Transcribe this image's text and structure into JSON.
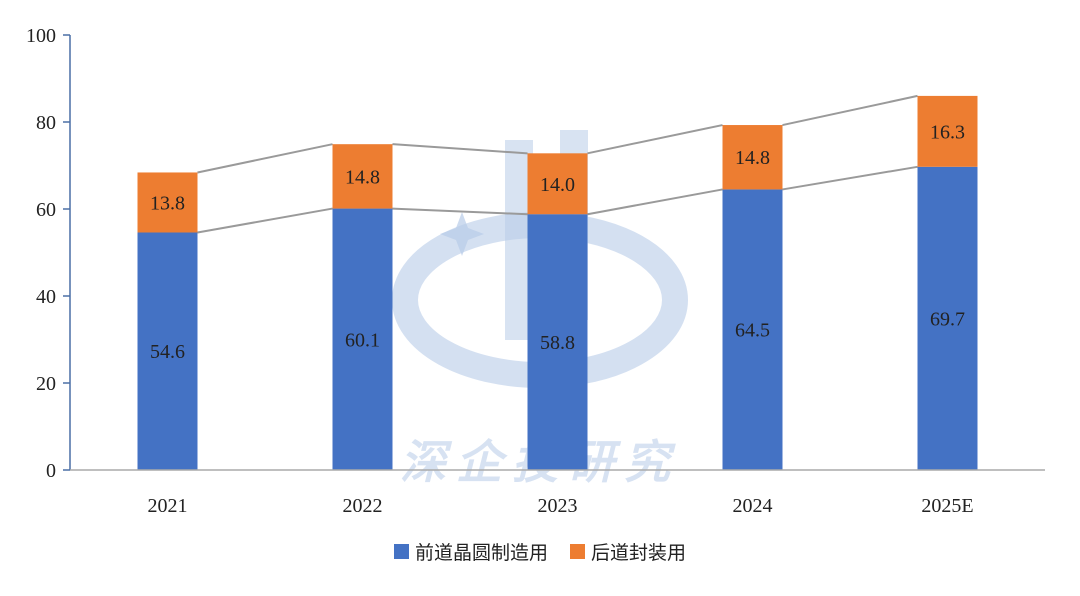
{
  "chart_data": {
    "type": "bar",
    "stacked": true,
    "categories": [
      "2021",
      "2022",
      "2023",
      "2024",
      "2025E"
    ],
    "series": [
      {
        "name": "前道晶圆制造用",
        "values": [
          54.6,
          60.1,
          58.8,
          64.5,
          69.7
        ],
        "color": "#4472C4"
      },
      {
        "name": "后道封装用",
        "values": [
          13.8,
          14.8,
          14.0,
          14.8,
          16.3
        ],
        "color": "#ED7D31"
      }
    ],
    "ylim": [
      0,
      100
    ],
    "yticks": [
      0,
      20,
      40,
      60,
      80,
      100
    ],
    "series_lines": true,
    "grid": false,
    "legend_position": "bottom"
  },
  "watermark": {
    "text": "深企投研究",
    "color": "#b8cce8"
  }
}
